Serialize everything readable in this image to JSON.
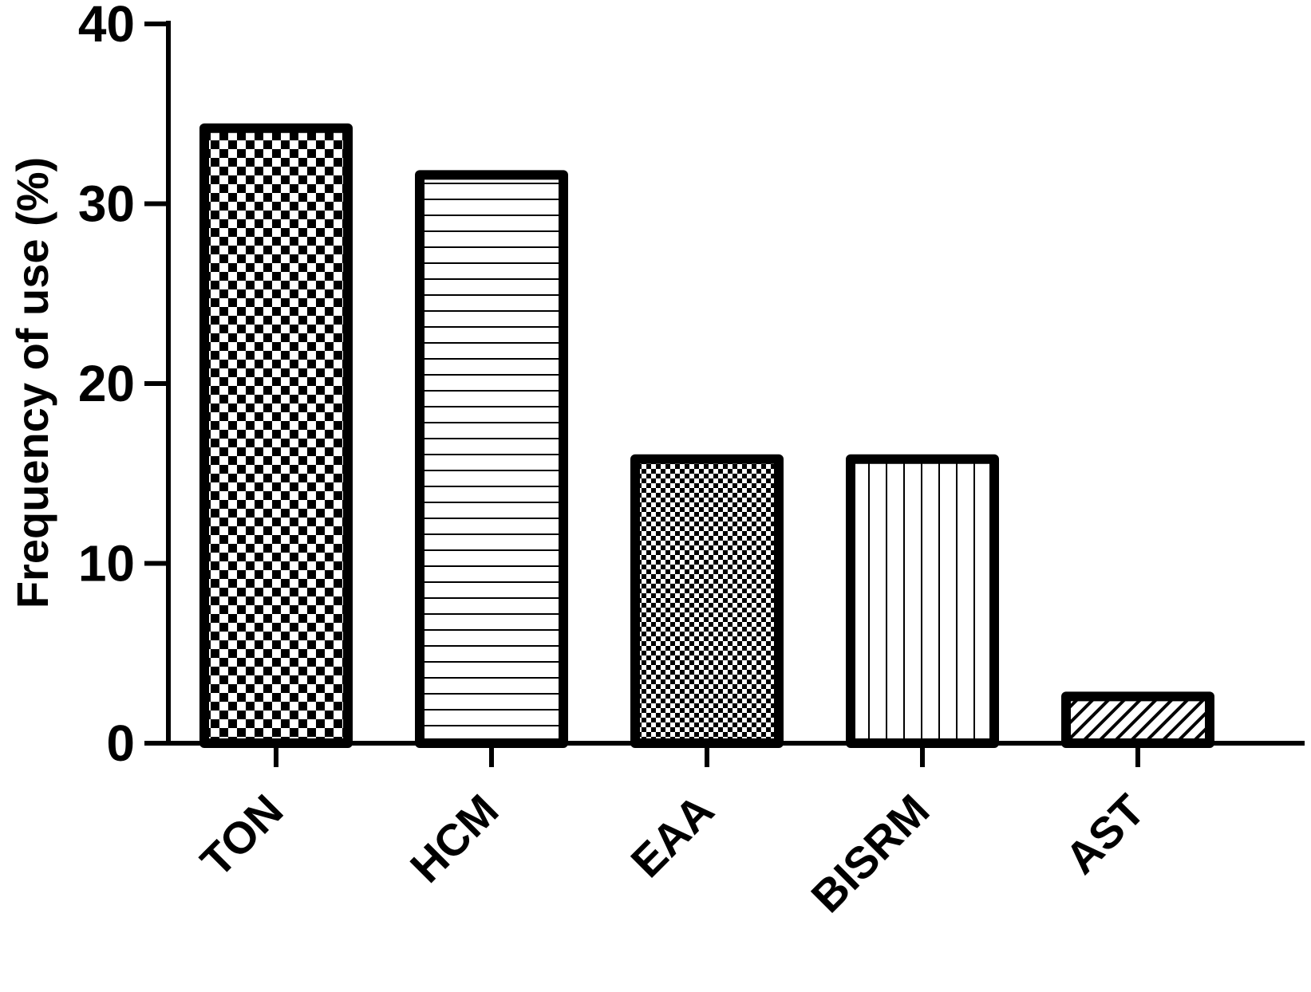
{
  "chart_data": {
    "type": "bar",
    "title": "",
    "xlabel": "",
    "ylabel": "Frequency of use (%)",
    "ylim": [
      0,
      40
    ],
    "yticks": [
      0,
      10,
      20,
      30,
      40
    ],
    "grid": false,
    "categories": [
      "TON",
      "HCM",
      "EAA",
      "BISRM",
      "AST"
    ],
    "values": [
      34.2,
      31.6,
      15.8,
      15.8,
      2.6
    ],
    "patterns": [
      "checkerboard",
      "horizontal-lines",
      "fine-checkerboard",
      "vertical-lines",
      "diagonal-lines"
    ],
    "colors": {
      "stroke": "#000000",
      "fill": "#ffffff"
    }
  }
}
